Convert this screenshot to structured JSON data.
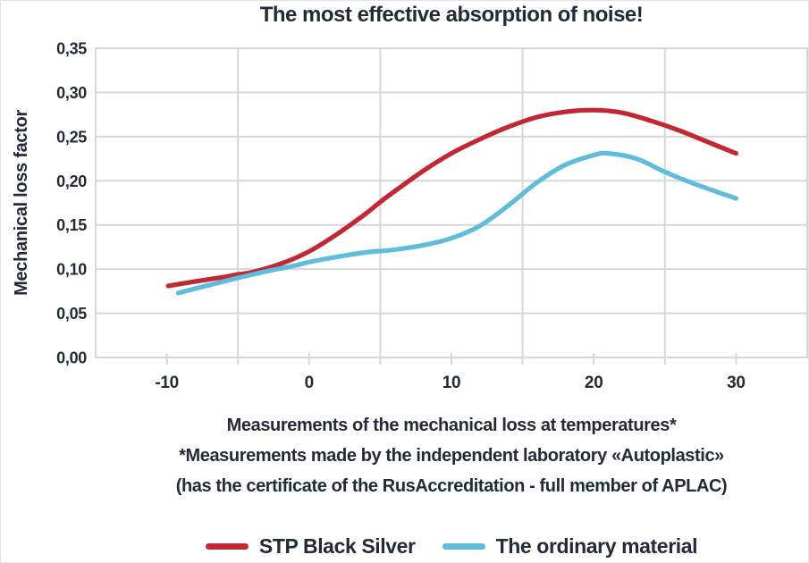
{
  "page": {
    "background": "#ffffff"
  },
  "chart_data": {
    "type": "line",
    "title": "The most effective absorption of noise!",
    "ylabel": "Mechanical loss factor",
    "xlabel": "",
    "xlim": [
      -15,
      35
    ],
    "ylim": [
      0,
      0.35
    ],
    "x_ticks": [
      -10,
      0,
      10,
      20,
      30
    ],
    "x_tick_labels": [
      "-10",
      "0",
      "10",
      "20",
      "30"
    ],
    "y_ticks": [
      0,
      0.05,
      0.1,
      0.15,
      0.2,
      0.25,
      0.3,
      0.35
    ],
    "y_tick_labels": [
      "0,00",
      "0,05",
      "0,10",
      "0,15",
      "0,20",
      "0,25",
      "0,30",
      "0,35"
    ],
    "grid": true,
    "grid_vertical_x": [
      -5,
      5,
      15,
      25
    ],
    "legend_position": "bottom",
    "series": [
      {
        "name": "STP Black Silver",
        "color": "#c22834",
        "points": [
          [
            -9.9,
            0.081
          ],
          [
            -8,
            0.086
          ],
          [
            -6,
            0.091
          ],
          [
            -5,
            0.094
          ],
          [
            -4,
            0.0965
          ],
          [
            -2,
            0.106
          ],
          [
            0,
            0.12
          ],
          [
            2,
            0.14
          ],
          [
            4,
            0.163
          ],
          [
            5,
            0.176
          ],
          [
            6,
            0.188
          ],
          [
            8,
            0.211
          ],
          [
            10,
            0.231
          ],
          [
            12,
            0.247
          ],
          [
            14,
            0.261
          ],
          [
            16,
            0.272
          ],
          [
            18,
            0.278
          ],
          [
            20,
            0.28
          ],
          [
            22,
            0.277
          ],
          [
            24,
            0.268
          ],
          [
            26,
            0.257
          ],
          [
            28,
            0.244
          ],
          [
            30,
            0.231
          ]
        ]
      },
      {
        "name": "The ordinary material",
        "color": "#5fbddb",
        "points": [
          [
            -9.2,
            0.073
          ],
          [
            -7,
            0.082
          ],
          [
            -5,
            0.09
          ],
          [
            -3,
            0.0975
          ],
          [
            -1,
            0.104
          ],
          [
            0,
            0.108
          ],
          [
            2,
            0.114
          ],
          [
            4,
            0.119
          ],
          [
            6,
            0.122
          ],
          [
            8,
            0.127
          ],
          [
            10,
            0.135
          ],
          [
            12,
            0.149
          ],
          [
            14,
            0.172
          ],
          [
            16,
            0.198
          ],
          [
            18,
            0.218
          ],
          [
            20,
            0.229
          ],
          [
            21,
            0.231
          ],
          [
            23,
            0.225
          ],
          [
            25,
            0.21
          ],
          [
            27,
            0.197
          ],
          [
            30,
            0.18
          ]
        ]
      }
    ],
    "captions": [
      "Measurements of the mechanical loss at temperatures*",
      "*Measurements made by the independent laboratory «Autoplastic»",
      "(has the certificate of the RusAccreditation - full member of APLAC)"
    ],
    "colors": {
      "text": "#232b38",
      "grid": "#d7d7d7",
      "background": "#ffffff"
    }
  }
}
